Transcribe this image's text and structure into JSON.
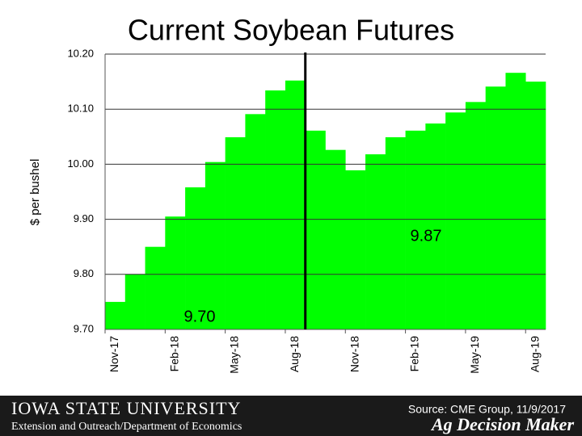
{
  "chart_data": {
    "type": "bar",
    "title": "Current Soybean Futures",
    "y_label": "$ per bushel",
    "categories": [
      "Nov-17",
      null,
      null,
      "Feb-18",
      null,
      null,
      "May-18",
      null,
      null,
      "Aug-18",
      null,
      null,
      "Nov-18",
      null,
      null,
      "Feb-19",
      null,
      null,
      "May-19",
      null,
      null,
      "Aug-19"
    ],
    "values": [
      9.75,
      9.8,
      9.85,
      9.905,
      9.958,
      10.004,
      10.049,
      10.091,
      10.134,
      10.152,
      10.061,
      10.026,
      9.989,
      10.018,
      10.049,
      10.061,
      10.074,
      10.094,
      10.113,
      10.141,
      10.166,
      10.15
    ],
    "color": "#00ff00",
    "ylim": [
      9.7,
      10.2
    ],
    "yticks": [
      {
        "value": 9.7,
        "label": "9.70"
      },
      {
        "value": 9.8,
        "label": "9.80"
      },
      {
        "value": 9.9,
        "label": "9.90"
      },
      {
        "value": 10.0,
        "label": "10.00"
      },
      {
        "value": 10.1,
        "label": "10.10"
      },
      {
        "value": 10.2,
        "label": "10.20"
      }
    ],
    "grid": true,
    "annotations": [
      "9.87",
      "9.70"
    ]
  },
  "footer": {
    "university": "Iowa State University",
    "department": "Extension and Outreach/Department of Economics",
    "source": "Source: CME Group, 11/9/2017",
    "brand": "Ag Decision Maker"
  }
}
